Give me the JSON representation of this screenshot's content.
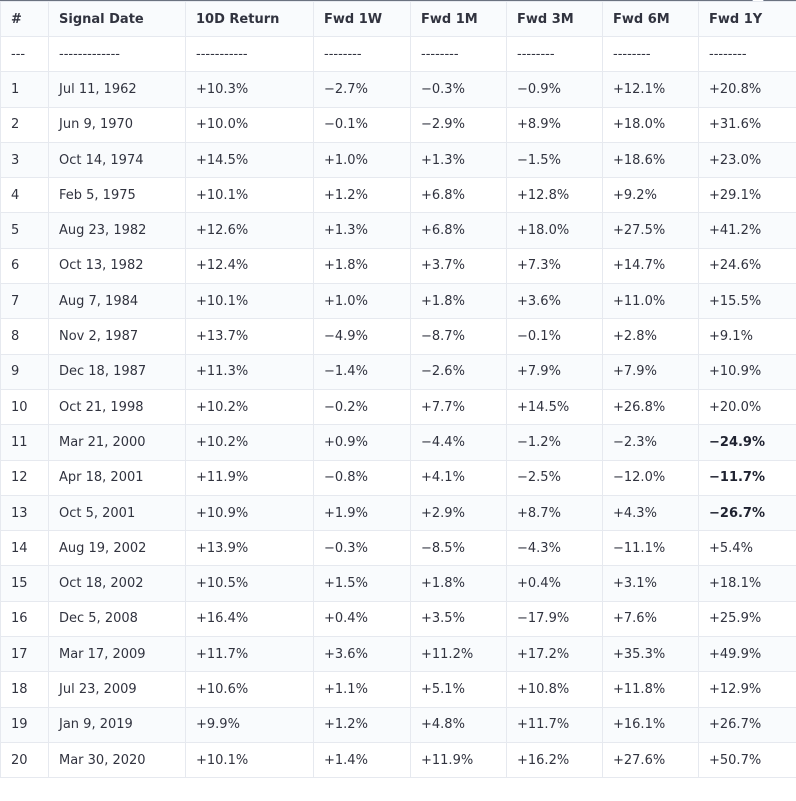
{
  "table": {
    "headers": [
      "#",
      "Signal Date",
      "10D Return",
      "Fwd 1W",
      "Fwd 1M",
      "Fwd 3M",
      "Fwd 6M",
      "Fwd 1Y"
    ],
    "separator": [
      "---",
      "-------------",
      "-----------",
      "--------",
      "--------",
      "--------",
      "--------",
      "--------"
    ],
    "rows": [
      [
        "1",
        "Jul 11, 1962",
        "+10.3%",
        "−2.7%",
        "−0.3%",
        "−0.9%",
        "+12.1%",
        "+20.8%"
      ],
      [
        "2",
        "Jun 9, 1970",
        "+10.0%",
        "−0.1%",
        "−2.9%",
        "+8.9%",
        "+18.0%",
        "+31.6%"
      ],
      [
        "3",
        "Oct 14, 1974",
        "+14.5%",
        "+1.0%",
        "+1.3%",
        "−1.5%",
        "+18.6%",
        "+23.0%"
      ],
      [
        "4",
        "Feb 5, 1975",
        "+10.1%",
        "+1.2%",
        "+6.8%",
        "+12.8%",
        "+9.2%",
        "+29.1%"
      ],
      [
        "5",
        "Aug 23, 1982",
        "+12.6%",
        "+1.3%",
        "+6.8%",
        "+18.0%",
        "+27.5%",
        "+41.2%"
      ],
      [
        "6",
        "Oct 13, 1982",
        "+12.4%",
        "+1.8%",
        "+3.7%",
        "+7.3%",
        "+14.7%",
        "+24.6%"
      ],
      [
        "7",
        "Aug 7, 1984",
        "+10.1%",
        "+1.0%",
        "+1.8%",
        "+3.6%",
        "+11.0%",
        "+15.5%"
      ],
      [
        "8",
        "Nov 2, 1987",
        "+13.7%",
        "−4.9%",
        "−8.7%",
        "−0.1%",
        "+2.8%",
        "+9.1%"
      ],
      [
        "9",
        "Dec 18, 1987",
        "+11.3%",
        "−1.4%",
        "−2.6%",
        "+7.9%",
        "+7.9%",
        "+10.9%"
      ],
      [
        "10",
        "Oct 21, 1998",
        "+10.2%",
        "−0.2%",
        "+7.7%",
        "+14.5%",
        "+26.8%",
        "+20.0%"
      ],
      [
        "11",
        "Mar 21, 2000",
        "+10.2%",
        "+0.9%",
        "−4.4%",
        "−1.2%",
        "−2.3%",
        "−24.9%"
      ],
      [
        "12",
        "Apr 18, 2001",
        "+11.9%",
        "−0.8%",
        "+4.1%",
        "−2.5%",
        "−12.0%",
        "−11.7%"
      ],
      [
        "13",
        "Oct 5, 2001",
        "+10.9%",
        "+1.9%",
        "+2.9%",
        "+8.7%",
        "+4.3%",
        "−26.7%"
      ],
      [
        "14",
        "Aug 19, 2002",
        "+13.9%",
        "−0.3%",
        "−8.5%",
        "−4.3%",
        "−11.1%",
        "+5.4%"
      ],
      [
        "15",
        "Oct 18, 2002",
        "+10.5%",
        "+1.5%",
        "+1.8%",
        "+0.4%",
        "+3.1%",
        "+18.1%"
      ],
      [
        "16",
        "Dec 5, 2008",
        "+16.4%",
        "+0.4%",
        "+3.5%",
        "−17.9%",
        "+7.6%",
        "+25.9%"
      ],
      [
        "17",
        "Mar 17, 2009",
        "+11.7%",
        "+3.6%",
        "+11.2%",
        "+17.2%",
        "+35.3%",
        "+49.9%"
      ],
      [
        "18",
        "Jul 23, 2009",
        "+10.6%",
        "+1.1%",
        "+5.1%",
        "+10.8%",
        "+11.8%",
        "+12.9%"
      ],
      [
        "19",
        "Jan 9, 2019",
        "+9.9%",
        "+1.2%",
        "+4.8%",
        "+11.7%",
        "+16.1%",
        "+26.7%"
      ],
      [
        "20",
        "Mar 30, 2020",
        "+10.1%",
        "+1.4%",
        "+11.9%",
        "+16.2%",
        "+27.6%",
        "+50.7%"
      ]
    ],
    "bold_cells": [
      [
        10,
        7
      ],
      [
        11,
        7
      ],
      [
        12,
        7
      ]
    ]
  }
}
